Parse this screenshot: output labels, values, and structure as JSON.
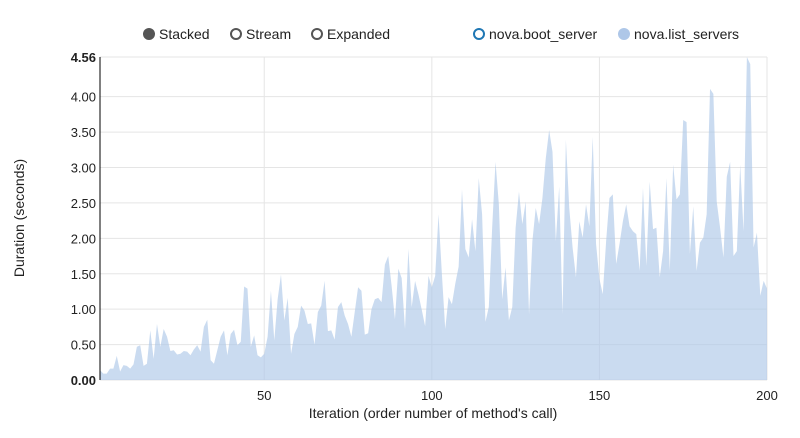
{
  "controls": [
    {
      "label": "Stacked",
      "selected": true
    },
    {
      "label": "Stream",
      "selected": false
    },
    {
      "label": "Expanded",
      "selected": false
    }
  ],
  "chart_data": {
    "type": "area",
    "xlabel": "Iteration (order number of method's call)",
    "ylabel": "Duration (seconds)",
    "xlim": [
      1,
      200
    ],
    "ylim": [
      0,
      4.56
    ],
    "x_ticks": [
      "50",
      "100",
      "150",
      "200"
    ],
    "y_ticks": [
      "0.00",
      "0.50",
      "1.00",
      "1.50",
      "2.00",
      "2.50",
      "3.00",
      "3.50",
      "4.00",
      "4.56"
    ],
    "grid": true,
    "legend_position": "top-right",
    "series": [
      {
        "name": "nova.boot_server",
        "color": "#1f77b4",
        "enabled": false
      },
      {
        "name": "nova.list_servers",
        "color": "#aec7e8",
        "enabled": true,
        "values": [
          0.14,
          0.09,
          0.09,
          0.16,
          0.16,
          0.34,
          0.12,
          0.21,
          0.2,
          0.16,
          0.22,
          0.47,
          0.49,
          0.2,
          0.23,
          0.7,
          0.3,
          0.79,
          0.47,
          0.72,
          0.61,
          0.41,
          0.42,
          0.36,
          0.37,
          0.41,
          0.4,
          0.35,
          0.43,
          0.49,
          0.4,
          0.75,
          0.85,
          0.28,
          0.23,
          0.42,
          0.61,
          0.7,
          0.35,
          0.65,
          0.71,
          0.49,
          0.54,
          1.32,
          1.29,
          0.47,
          0.63,
          0.35,
          0.32,
          0.37,
          0.61,
          1.26,
          0.56,
          1.14,
          1.49,
          0.84,
          1.16,
          0.37,
          0.65,
          0.75,
          1.05,
          0.98,
          0.79,
          0.8,
          0.5,
          0.96,
          1.05,
          1.4,
          0.69,
          0.7,
          0.57,
          1.03,
          1.1,
          0.91,
          0.79,
          0.61,
          0.96,
          1.31,
          1.26,
          0.64,
          0.66,
          1.0,
          1.14,
          1.16,
          1.1,
          1.63,
          1.75,
          1.33,
          0.86,
          1.57,
          1.44,
          0.72,
          1.85,
          1.03,
          1.4,
          1.21,
          0.99,
          0.76,
          1.47,
          1.31,
          1.47,
          2.34,
          1.5,
          0.72,
          1.17,
          1.07,
          1.36,
          1.6,
          2.69,
          1.85,
          1.73,
          2.27,
          1.82,
          2.85,
          2.34,
          0.82,
          1.03,
          2.15,
          3.08,
          2.48,
          1.14,
          1.59,
          0.84,
          1.03,
          2.15,
          2.66,
          2.2,
          2.52,
          0.93,
          1.96,
          2.43,
          2.2,
          2.57,
          3.13,
          3.53,
          3.22,
          1.96,
          2.73,
          0.93,
          3.39,
          2.43,
          1.87,
          1.45,
          2.24,
          2.01,
          2.48,
          2.17,
          3.43,
          1.92,
          1.43,
          1.21,
          1.96,
          2.57,
          2.62,
          1.64,
          1.92,
          2.24,
          2.48,
          2.17,
          2.1,
          2.06,
          1.54,
          2.71,
          1.61,
          2.8,
          2.13,
          2.15,
          1.45,
          1.82,
          2.85,
          1.54,
          3.04,
          2.55,
          2.62,
          3.67,
          3.64,
          1.78,
          2.45,
          1.54,
          1.94,
          2.01,
          2.34,
          4.11,
          4.04,
          2.52,
          2.15,
          1.73,
          2.87,
          3.08,
          1.75,
          1.82,
          3.04,
          2.1,
          4.56,
          4.46,
          1.87,
          2.08,
          1.19,
          1.4,
          1.29
        ]
      }
    ]
  }
}
